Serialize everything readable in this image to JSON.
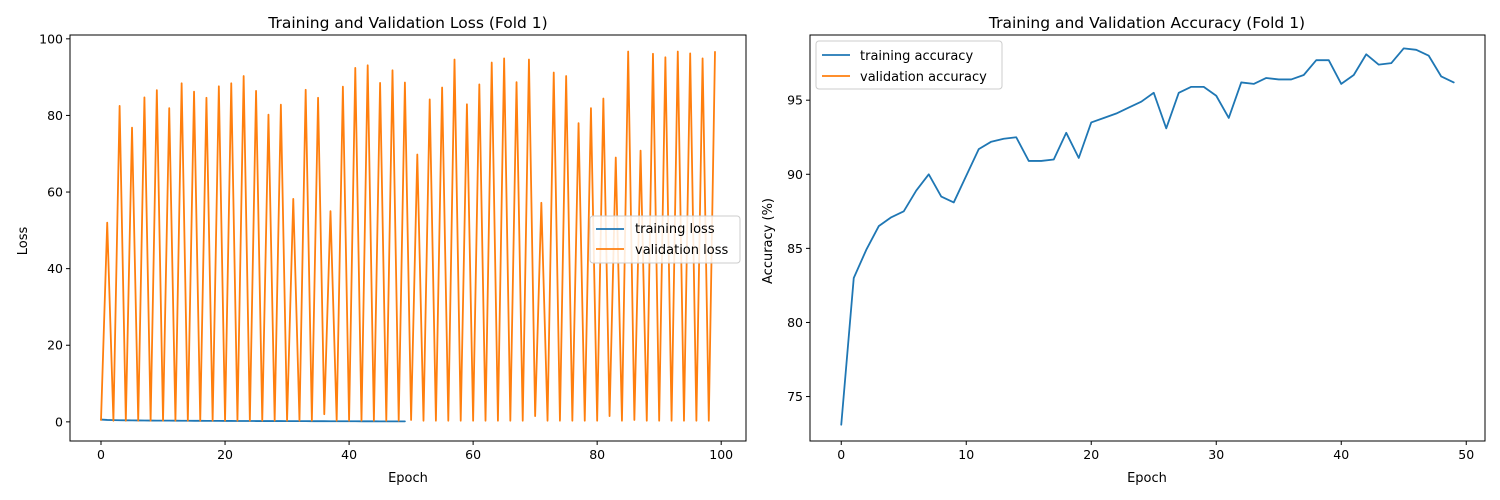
{
  "chart_data": [
    {
      "type": "line",
      "title": "Training and Validation Loss (Fold 1)",
      "xlabel": "Epoch",
      "ylabel": "Loss",
      "xlim": [
        -5,
        104
      ],
      "ylim": [
        -5,
        101
      ],
      "xticks": [
        0,
        20,
        40,
        60,
        80,
        100
      ],
      "yticks": [
        0,
        20,
        40,
        60,
        80,
        100
      ],
      "grid": false,
      "legend_position": "center-right",
      "series": [
        {
          "name": "training loss",
          "color": "#1f77b4",
          "x": [
            0,
            1,
            2,
            3,
            4,
            5,
            6,
            7,
            8,
            9,
            10,
            11,
            12,
            13,
            14,
            15,
            16,
            17,
            18,
            19,
            20,
            21,
            22,
            23,
            24,
            25,
            26,
            27,
            28,
            29,
            30,
            31,
            32,
            33,
            34,
            35,
            36,
            37,
            38,
            39,
            40,
            41,
            42,
            43,
            44,
            45,
            46,
            47,
            48,
            49
          ],
          "y": [
            0.6,
            0.5,
            0.45,
            0.42,
            0.4,
            0.38,
            0.37,
            0.35,
            0.34,
            0.33,
            0.32,
            0.31,
            0.3,
            0.29,
            0.28,
            0.27,
            0.27,
            0.26,
            0.25,
            0.25,
            0.24,
            0.24,
            0.23,
            0.22,
            0.22,
            0.21,
            0.21,
            0.2,
            0.2,
            0.2,
            0.19,
            0.19,
            0.18,
            0.18,
            0.17,
            0.17,
            0.17,
            0.16,
            0.16,
            0.15,
            0.15,
            0.15,
            0.14,
            0.14,
            0.14,
            0.13,
            0.13,
            0.13,
            0.12,
            0.12
          ]
        },
        {
          "name": "validation loss",
          "color": "#ff7f0e",
          "x": [
            0,
            1,
            2,
            3,
            4,
            5,
            6,
            7,
            8,
            9,
            10,
            11,
            12,
            13,
            14,
            15,
            16,
            17,
            18,
            19,
            20,
            21,
            22,
            23,
            24,
            25,
            26,
            27,
            28,
            29,
            30,
            31,
            32,
            33,
            34,
            35,
            36,
            37,
            38,
            39,
            40,
            41,
            42,
            43,
            44,
            45,
            46,
            47,
            48,
            49,
            50,
            51,
            52,
            53,
            54,
            55,
            56,
            57,
            58,
            59,
            60,
            61,
            62,
            63,
            64,
            65,
            66,
            67,
            68,
            69,
            70,
            71,
            72,
            73,
            74,
            75,
            76,
            77,
            78,
            79,
            80,
            81,
            82,
            83,
            84,
            85,
            86,
            87,
            88,
            89,
            90,
            91,
            92,
            93,
            94,
            95,
            96,
            97,
            98,
            99
          ],
          "y": [
            0.5,
            52,
            0.3,
            82.5,
            0.3,
            76.8,
            0.3,
            84.7,
            0.3,
            86.6,
            0.3,
            81.9,
            0.3,
            88.4,
            0.3,
            86.2,
            0.3,
            84.6,
            0.3,
            87.6,
            0.3,
            88.4,
            0.3,
            90.3,
            0.3,
            86.4,
            0.3,
            80.2,
            0.3,
            82.8,
            0.3,
            58.2,
            0.3,
            86.7,
            0.3,
            84.6,
            2,
            55,
            0.3,
            87.5,
            0.3,
            92.4,
            0.3,
            93.1,
            0.3,
            88.5,
            0.3,
            91.8,
            0.3,
            88.6,
            0.5,
            69.8,
            0.3,
            84.2,
            0.3,
            87.3,
            0.3,
            94.6,
            0.3,
            82.9,
            0.3,
            88.1,
            0.3,
            93.8,
            0.3,
            94.9,
            0.3,
            88.7,
            0.3,
            94.6,
            1.5,
            57.2,
            0.3,
            91.2,
            0.3,
            90.3,
            0.3,
            78,
            0.3,
            81.9,
            0.3,
            84.4,
            1.5,
            69,
            0.3,
            96.7,
            0.5,
            70.8,
            0.3,
            96.1,
            0.3,
            95.2,
            0.3,
            96.7,
            0.3,
            96.2,
            0.3,
            94.9,
            0.3,
            96.6
          ]
        }
      ]
    },
    {
      "type": "line",
      "title": "Training and Validation Accuracy (Fold 1)",
      "xlabel": "Epoch",
      "ylabel": "Accuracy (%)",
      "xlim": [
        -2.5,
        51.5
      ],
      "ylim": [
        72,
        99.4
      ],
      "xticks": [
        0,
        10,
        20,
        30,
        40,
        50
      ],
      "yticks": [
        75,
        80,
        85,
        90,
        95
      ],
      "grid": false,
      "legend_position": "top-left",
      "series": [
        {
          "name": "training accuracy",
          "color": "#1f77b4",
          "x": [
            0,
            1,
            2,
            3,
            4,
            5,
            6,
            7,
            8,
            9,
            10,
            11,
            12,
            13,
            14,
            15,
            16,
            17,
            18,
            19,
            20,
            21,
            22,
            23,
            24,
            25,
            26,
            27,
            28,
            29,
            30,
            31,
            32,
            33,
            34,
            35,
            36,
            37,
            38,
            39,
            40,
            41,
            42,
            43,
            44,
            45,
            46,
            47,
            48,
            49
          ],
          "y": [
            73.1,
            83,
            84.9,
            86.5,
            87.1,
            87.5,
            88.9,
            90,
            88.5,
            88.1,
            89.9,
            91.7,
            92.2,
            92.4,
            92.5,
            90.9,
            90.9,
            91,
            92.8,
            91.1,
            93.5,
            93.8,
            94.1,
            94.5,
            94.9,
            95.5,
            93.1,
            95.5,
            95.9,
            95.9,
            95.3,
            93.8,
            96.2,
            96.1,
            96.5,
            96.4,
            96.4,
            96.7,
            97.7,
            97.7,
            96.1,
            96.7,
            98.1,
            97.4,
            97.5,
            98.5,
            98.4,
            98,
            96.6,
            96.2
          ]
        },
        {
          "name": "validation accuracy",
          "color": "#ff7f0e",
          "x": [],
          "y": []
        }
      ]
    }
  ]
}
